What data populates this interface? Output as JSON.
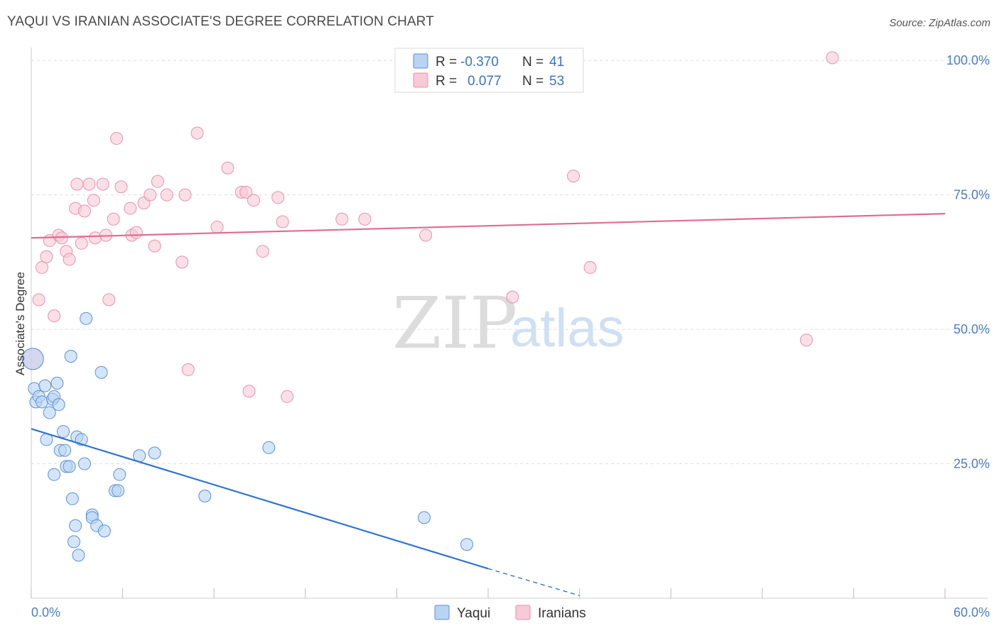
{
  "title": "YAQUI VS IRANIAN ASSOCIATE'S DEGREE CORRELATION CHART",
  "source": "Source: ZipAtlas.com",
  "watermark": {
    "zip": "ZIP",
    "atlas": "atlas"
  },
  "colors": {
    "yaqui_fill": "#b9d3f3",
    "yaqui_stroke": "#5b8fd8",
    "yaqui_line": "#2f74d0",
    "iranian_fill": "#f8c9d7",
    "iranian_stroke": "#e891ad",
    "iranian_line": "#e06b93",
    "tick_text": "#4a7cc7",
    "grid": "#dddddd"
  },
  "legend_top": {
    "rows": [
      {
        "r_label": "R =",
        "r_value": "-0.370",
        "n_label": "N =",
        "n_value": "41"
      },
      {
        "r_label": "R =",
        "r_value": "0.077",
        "n_label": "N =",
        "n_value": "53"
      }
    ]
  },
  "legend_bottom": [
    "Yaqui",
    "Iranians"
  ],
  "chart_data": {
    "type": "scatter",
    "xlabel": "",
    "ylabel": "Associate's Degree",
    "xlim": [
      0,
      60
    ],
    "ylim": [
      0,
      102
    ],
    "x_tick_labels": [
      {
        "value": 0,
        "label": "0.0%"
      },
      {
        "value": 60,
        "label": "60.0%"
      }
    ],
    "y_tick_labels": [
      {
        "value": 25,
        "label": "25.0%"
      },
      {
        "value": 50,
        "label": "50.0%"
      },
      {
        "value": 75,
        "label": "75.0%"
      },
      {
        "value": 100,
        "label": "100.0%"
      }
    ],
    "grid": true,
    "legend_position": "top-center",
    "series": [
      {
        "name": "Yaqui",
        "points": [
          [
            0.1,
            44.5
          ],
          [
            0.2,
            39.0
          ],
          [
            0.3,
            36.5
          ],
          [
            0.5,
            37.5
          ],
          [
            0.7,
            36.5
          ],
          [
            0.9,
            39.5
          ],
          [
            1.0,
            29.5
          ],
          [
            1.2,
            34.5
          ],
          [
            1.4,
            37.0
          ],
          [
            1.5,
            37.5
          ],
          [
            1.5,
            23.0
          ],
          [
            1.7,
            40.0
          ],
          [
            1.8,
            36.0
          ],
          [
            1.9,
            27.5
          ],
          [
            2.1,
            31.0
          ],
          [
            2.2,
            27.5
          ],
          [
            2.3,
            24.5
          ],
          [
            2.5,
            24.5
          ],
          [
            2.6,
            45.0
          ],
          [
            2.7,
            18.5
          ],
          [
            2.8,
            10.5
          ],
          [
            2.9,
            13.5
          ],
          [
            3.0,
            30.0
          ],
          [
            3.1,
            8.0
          ],
          [
            3.3,
            29.5
          ],
          [
            3.5,
            25.0
          ],
          [
            3.6,
            52.0
          ],
          [
            4.0,
            15.5
          ],
          [
            4.0,
            15.0
          ],
          [
            4.3,
            13.5
          ],
          [
            4.6,
            42.0
          ],
          [
            4.8,
            12.5
          ],
          [
            5.5,
            20.0
          ],
          [
            5.7,
            20.0
          ],
          [
            5.8,
            23.0
          ],
          [
            7.1,
            26.5
          ],
          [
            8.1,
            27.0
          ],
          [
            11.4,
            19.0
          ],
          [
            15.6,
            28.0
          ],
          [
            25.8,
            15.0
          ],
          [
            28.6,
            10.0
          ]
        ],
        "trend": {
          "x": [
            0,
            30
          ],
          "y": [
            31.5,
            5.5
          ],
          "dashed_to": {
            "x": 36,
            "y": 0.5
          }
        }
      },
      {
        "name": "Iranians",
        "points": [
          [
            0.1,
            44.5
          ],
          [
            0.5,
            55.5
          ],
          [
            0.7,
            61.5
          ],
          [
            1.0,
            63.5
          ],
          [
            1.2,
            66.5
          ],
          [
            1.5,
            52.5
          ],
          [
            1.8,
            67.5
          ],
          [
            2.0,
            67.0
          ],
          [
            2.3,
            64.5
          ],
          [
            2.5,
            63.0
          ],
          [
            2.9,
            72.5
          ],
          [
            3.0,
            77.0
          ],
          [
            3.3,
            66.0
          ],
          [
            3.5,
            72.0
          ],
          [
            3.8,
            77.0
          ],
          [
            4.1,
            74.0
          ],
          [
            4.2,
            67.0
          ],
          [
            4.7,
            77.0
          ],
          [
            4.9,
            67.5
          ],
          [
            5.1,
            55.5
          ],
          [
            5.4,
            70.5
          ],
          [
            5.6,
            85.5
          ],
          [
            5.9,
            76.5
          ],
          [
            6.5,
            72.5
          ],
          [
            6.6,
            67.5
          ],
          [
            6.9,
            68.0
          ],
          [
            7.4,
            73.5
          ],
          [
            7.8,
            75.0
          ],
          [
            8.1,
            65.5
          ],
          [
            8.3,
            77.5
          ],
          [
            8.9,
            75.0
          ],
          [
            9.9,
            62.5
          ],
          [
            10.1,
            75.0
          ],
          [
            10.3,
            42.5
          ],
          [
            10.9,
            86.5
          ],
          [
            12.2,
            69.0
          ],
          [
            12.9,
            80.0
          ],
          [
            13.8,
            75.5
          ],
          [
            14.1,
            75.5
          ],
          [
            14.3,
            38.5
          ],
          [
            14.6,
            74.0
          ],
          [
            15.2,
            64.5
          ],
          [
            16.2,
            74.5
          ],
          [
            16.5,
            70.0
          ],
          [
            16.8,
            37.5
          ],
          [
            20.4,
            70.5
          ],
          [
            21.9,
            70.5
          ],
          [
            25.9,
            67.5
          ],
          [
            31.6,
            56.0
          ],
          [
            35.6,
            78.5
          ],
          [
            36.7,
            61.5
          ],
          [
            50.9,
            48.0
          ],
          [
            52.6,
            100.5
          ]
        ],
        "trend": {
          "x": [
            0,
            60
          ],
          "y": [
            67.0,
            71.5
          ]
        }
      }
    ]
  }
}
